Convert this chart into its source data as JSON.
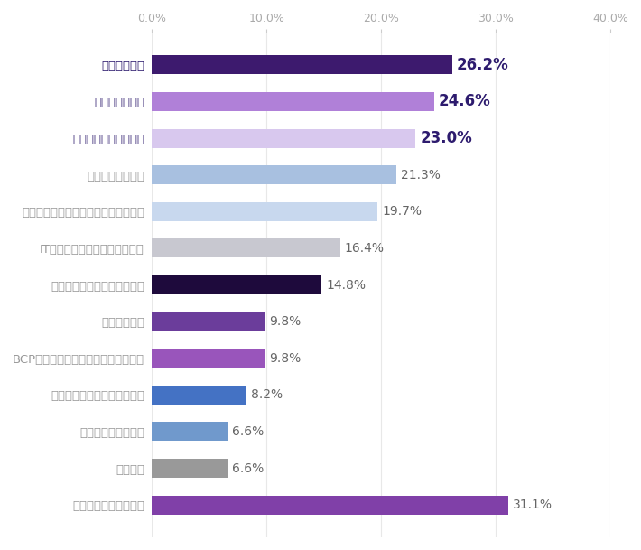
{
  "categories": [
    "あてはまるものはない",
    "広報業務",
    "受付など秘書的業務",
    "駐車場など固定資産管理業務",
    "BCP対策などリスクマネジメント業務",
    "株主総会対応",
    "社会保険・雇用保険の手続き",
    "ITシステムなどのインフラ管理",
    "給与計算や交通費の処理など経理業務",
    "安全衛生管理業務",
    "備品管理など帶務業務",
    "契約書管理業務",
    "勤怠管理業務"
  ],
  "values": [
    31.1,
    6.6,
    6.6,
    8.2,
    9.8,
    9.8,
    14.8,
    16.4,
    19.7,
    21.3,
    23.0,
    24.6,
    26.2
  ],
  "colors": [
    "#8040A8",
    "#999999",
    "#7099CC",
    "#4472C4",
    "#9955BB",
    "#6B3D9B",
    "#1E0A3C",
    "#C8C8D0",
    "#C8D8EE",
    "#A8C0E0",
    "#D8C8EE",
    "#B080D8",
    "#3D1A6E"
  ],
  "bold_labels": [
    false,
    false,
    false,
    false,
    false,
    false,
    false,
    false,
    false,
    false,
    true,
    true,
    true
  ],
  "bold_values": [
    false,
    false,
    false,
    false,
    false,
    false,
    false,
    false,
    false,
    false,
    true,
    true,
    true
  ],
  "value_colors_bold": "#2D1B6E",
  "value_colors_normal": "#666666",
  "xlim": [
    0,
    40
  ],
  "xticks": [
    0,
    10,
    20,
    30,
    40
  ],
  "xtick_labels": [
    "0.0%",
    "10.0%",
    "20.0%",
    "30.0%",
    "40.0%"
  ],
  "background_color": "#FFFFFF",
  "bar_height": 0.52,
  "label_fontsize": 9.5,
  "value_fontsize": 11,
  "tick_fontsize": 9
}
